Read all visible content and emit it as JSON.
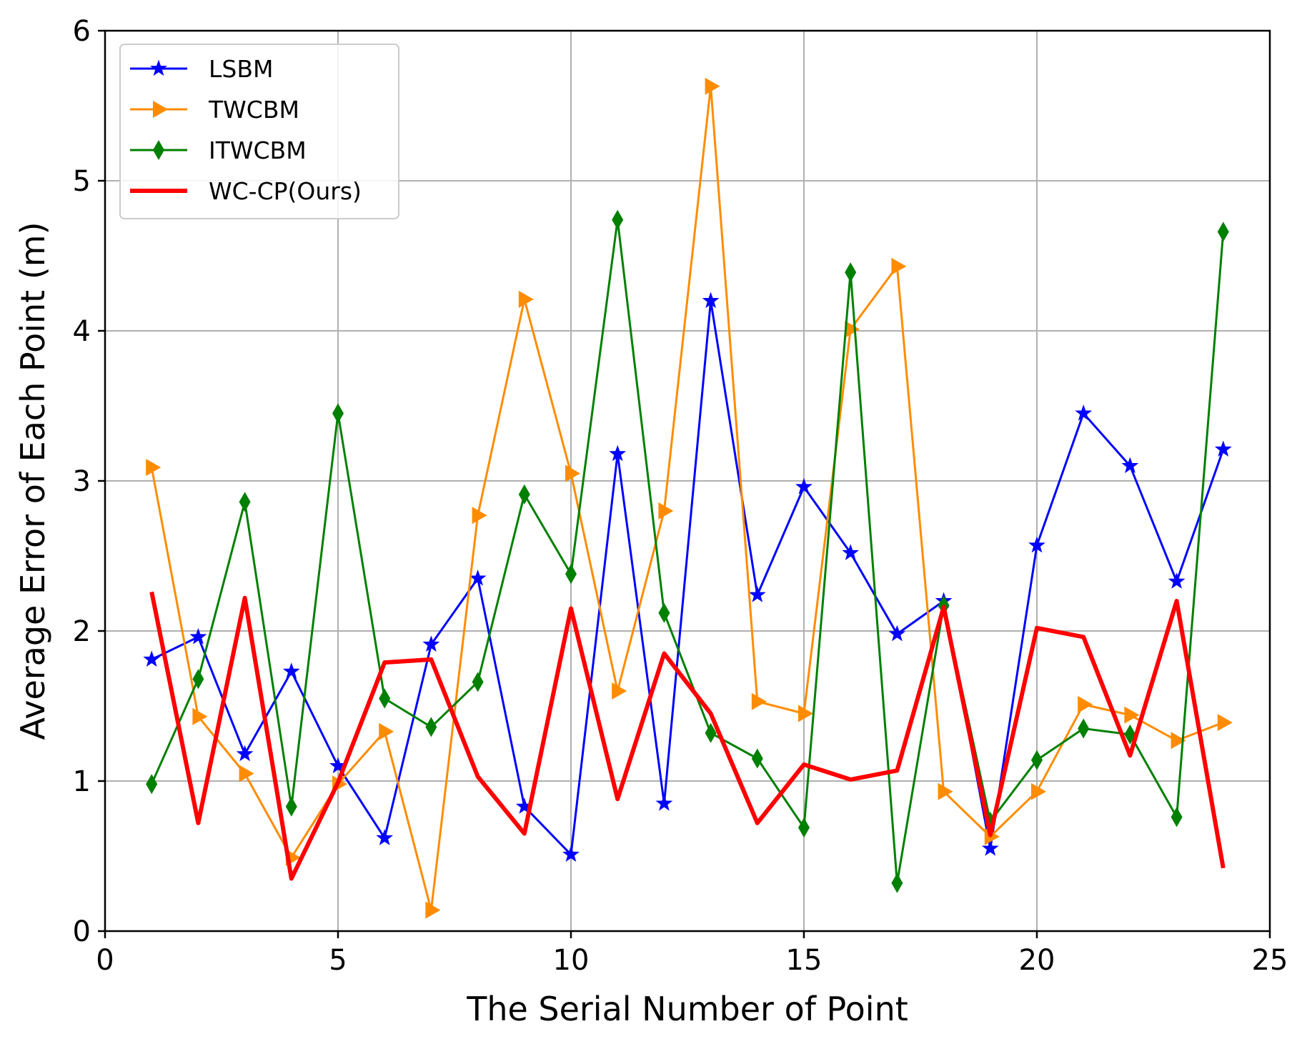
{
  "chart_data": {
    "type": "line",
    "title": "",
    "xlabel": "The Serial Number of Point",
    "ylabel": "Average Error of Each Point (m)",
    "xlim": [
      0,
      25
    ],
    "ylim": [
      0,
      6
    ],
    "xticks": [
      0,
      5,
      10,
      15,
      20,
      25
    ],
    "yticks": [
      0,
      1,
      2,
      3,
      4,
      5,
      6
    ],
    "grid": true,
    "legend_position": "top-left",
    "x": [
      1,
      2,
      3,
      4,
      5,
      6,
      7,
      8,
      9,
      10,
      11,
      12,
      13,
      14,
      15,
      16,
      17,
      18,
      19,
      20,
      21,
      22,
      23,
      24
    ],
    "series": [
      {
        "name": "LSBM",
        "color": "#0000ff",
        "marker": "star",
        "values": [
          1.81,
          1.96,
          1.18,
          1.73,
          1.1,
          0.62,
          1.91,
          2.35,
          0.83,
          0.51,
          3.18,
          0.85,
          4.2,
          2.24,
          2.96,
          2.52,
          1.98,
          2.2,
          0.55,
          2.57,
          3.45,
          3.1,
          2.33,
          3.21
        ]
      },
      {
        "name": "TWCBM",
        "color": "#ff8c00",
        "marker": "triangle-right",
        "values": [
          3.09,
          1.43,
          1.05,
          0.49,
          0.98,
          1.33,
          0.14,
          2.77,
          4.21,
          3.05,
          1.6,
          2.8,
          5.63,
          1.53,
          1.45,
          4.01,
          4.43,
          0.93,
          0.63,
          0.93,
          1.51,
          1.44,
          1.27,
          1.39
        ]
      },
      {
        "name": "ITWCBM",
        "color": "#008000",
        "marker": "diamond",
        "values": [
          0.98,
          1.68,
          2.86,
          0.83,
          3.45,
          1.55,
          1.36,
          1.66,
          2.91,
          2.38,
          4.74,
          2.12,
          1.32,
          1.15,
          0.69,
          4.39,
          0.32,
          2.17,
          0.73,
          1.14,
          1.35,
          1.31,
          0.76,
          4.66
        ]
      },
      {
        "name": "WC-CP(Ours)",
        "color": "#ff0000",
        "marker": "none",
        "values": [
          2.26,
          0.72,
          2.22,
          0.35,
          0.99,
          1.79,
          1.81,
          1.03,
          0.65,
          2.15,
          0.88,
          1.85,
          1.45,
          0.72,
          1.11,
          1.01,
          1.07,
          2.16,
          0.64,
          2.02,
          1.96,
          1.17,
          2.2,
          0.42
        ]
      }
    ]
  }
}
